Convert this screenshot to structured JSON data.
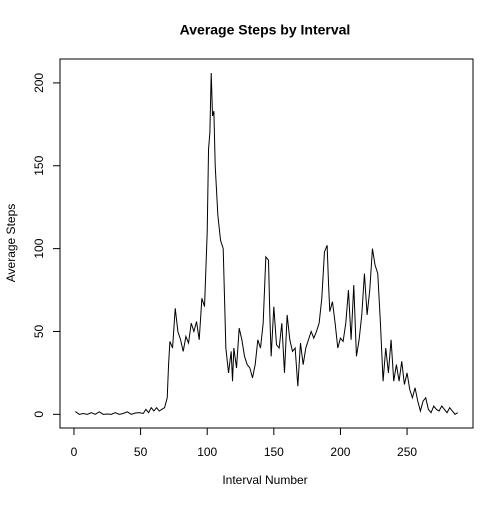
{
  "chart_data": {
    "type": "line",
    "title": "Average Steps by Interval",
    "xlabel": "Interval Number",
    "ylabel": "Average Steps",
    "x": [
      1,
      4,
      7,
      10,
      13,
      16,
      19,
      22,
      25,
      28,
      31,
      34,
      37,
      40,
      43,
      46,
      49,
      52,
      54,
      56,
      58,
      60,
      62,
      64,
      66,
      68,
      70,
      71,
      72,
      74,
      76,
      78,
      80,
      82,
      84,
      86,
      88,
      90,
      92,
      94,
      96,
      98,
      100,
      101,
      102,
      103,
      104,
      105,
      106,
      108,
      110,
      112,
      114,
      116,
      118,
      119,
      120,
      122,
      124,
      126,
      128,
      130,
      132,
      134,
      136,
      138,
      140,
      142,
      144,
      146,
      147,
      148,
      150,
      152,
      154,
      156,
      158,
      160,
      162,
      164,
      166,
      168,
      170,
      172,
      174,
      176,
      178,
      180,
      182,
      184,
      186,
      188,
      190,
      191,
      192,
      194,
      196,
      198,
      200,
      202,
      204,
      206,
      208,
      210,
      212,
      214,
      216,
      218,
      220,
      222,
      224,
      226,
      228,
      230,
      232,
      234,
      236,
      238,
      240,
      242,
      244,
      246,
      248,
      250,
      252,
      254,
      256,
      258,
      260,
      262,
      264,
      266,
      268,
      270,
      272,
      274,
      276,
      278,
      280,
      282,
      284,
      286,
      288
    ],
    "series": [
      {
        "name": "Average Steps",
        "color": "#000000",
        "values": [
          1.7,
          0,
          0.5,
          0,
          1,
          0,
          1.5,
          0,
          0.2,
          0,
          1,
          0,
          0.5,
          1.5,
          0,
          0.8,
          1,
          0.5,
          3,
          1,
          4,
          2,
          4,
          2,
          3,
          4,
          10,
          30,
          44,
          40,
          64,
          50,
          45,
          38,
          47,
          43,
          55,
          50,
          56,
          45,
          70,
          65,
          110,
          160,
          170,
          206,
          180,
          183,
          150,
          120,
          105,
          100,
          40,
          25,
          38,
          20,
          40,
          28,
          52,
          45,
          35,
          30,
          28,
          22,
          30,
          45,
          40,
          55,
          95,
          93,
          60,
          35,
          65,
          42,
          40,
          55,
          25,
          60,
          45,
          38,
          40,
          17,
          43,
          30,
          40,
          45,
          50,
          46,
          50,
          55,
          70,
          98,
          102,
          80,
          62,
          68,
          55,
          40,
          46,
          44,
          55,
          75,
          45,
          78,
          35,
          45,
          60,
          85,
          60,
          75,
          100,
          90,
          85,
          55,
          20,
          40,
          25,
          45,
          20,
          30,
          20,
          32,
          18,
          25,
          15,
          10,
          16,
          8,
          2,
          8,
          10,
          3,
          1,
          5,
          3,
          2,
          5,
          3,
          1,
          4,
          2,
          0,
          1
        ]
      }
    ],
    "xlim": [
      -10.48,
      299.48
    ],
    "ylim": [
      -8.25,
      214.42
    ],
    "xticks": [
      0,
      50,
      100,
      150,
      200,
      250
    ],
    "yticks": [
      0,
      50,
      100,
      150,
      200
    ]
  }
}
